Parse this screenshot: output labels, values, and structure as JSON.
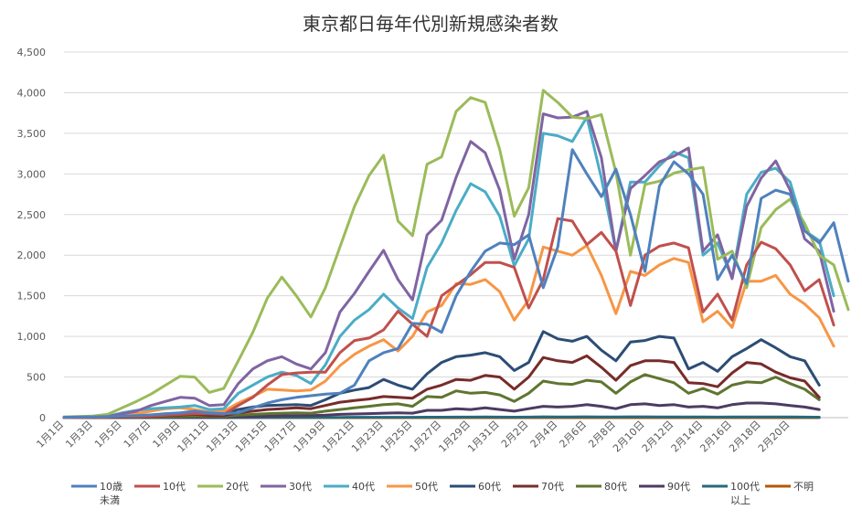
{
  "chart_data": {
    "type": "line",
    "title": "東京都日毎年代別新規感染者数",
    "xlabel": "",
    "ylabel": "",
    "ylim": [
      0,
      4500
    ],
    "yticks": [
      0,
      500,
      1000,
      1500,
      2000,
      2500,
      3000,
      3500,
      4000,
      4500
    ],
    "ytick_labels": [
      "0",
      "500",
      "1,000",
      "1,500",
      "2,000",
      "2,500",
      "3,000",
      "3,500",
      "4,000",
      "4,500"
    ],
    "grid": true,
    "legend_position": "bottom",
    "x_tick_labels": [
      "1月1日",
      "1月3日",
      "1月5日",
      "1月7日",
      "1月9日",
      "1月11日",
      "1月13日",
      "1月15日",
      "1月17日",
      "1月19日",
      "1月21日",
      "1月23日",
      "1月25日",
      "1月27日",
      "1月29日",
      "1月31日",
      "2月2日",
      "2月4日",
      "2月6日",
      "2月8日",
      "2月10日",
      "2月12日",
      "2月14日",
      "2月16日",
      "2月18日",
      "2月20日"
    ],
    "series": [
      {
        "name": "10歳\n未満",
        "color": "#4f81bd",
        "values": [
          5,
          8,
          10,
          15,
          20,
          25,
          35,
          50,
          60,
          80,
          60,
          50,
          60,
          120,
          180,
          220,
          250,
          270,
          290,
          300,
          400,
          700,
          800,
          850,
          1160,
          1150,
          1050,
          1500,
          1800,
          2050,
          2150,
          2130,
          2250,
          1600,
          2100,
          3300,
          3000,
          2720,
          3060,
          2500,
          1800,
          2850,
          3150,
          3000,
          2750,
          1700,
          2000,
          1650,
          2700,
          2800,
          2750,
          2300,
          2150,
          2400,
          1680
        ]
      },
      {
        "name": "10代",
        "color": "#c0504d",
        "values": [
          3,
          5,
          6,
          8,
          12,
          15,
          20,
          30,
          40,
          50,
          50,
          40,
          150,
          250,
          400,
          530,
          550,
          560,
          560,
          800,
          950,
          980,
          1080,
          1310,
          1150,
          1000,
          1500,
          1630,
          1760,
          1910,
          1910,
          1850,
          1350,
          1700,
          2450,
          2420,
          2130,
          2280,
          2050,
          1380,
          2000,
          2110,
          2150,
          2090,
          1300,
          1520,
          1200,
          1880,
          2160,
          2080,
          1880,
          1560,
          1700,
          1140
        ]
      },
      {
        "name": "20代",
        "color": "#9bbb59",
        "values": [
          10,
          15,
          20,
          40,
          120,
          200,
          290,
          400,
          510,
          500,
          310,
          360,
          700,
          1050,
          1470,
          1730,
          1500,
          1240,
          1600,
          2100,
          2600,
          2980,
          3230,
          2420,
          2240,
          3120,
          3210,
          3770,
          3940,
          3880,
          3300,
          2480,
          2830,
          4030,
          3880,
          3700,
          3680,
          3730,
          3020,
          2000,
          2870,
          2910,
          3010,
          3050,
          3080,
          1950,
          2050,
          1600,
          2340,
          2560,
          2690,
          2390,
          2000,
          1880,
          1330
        ]
      },
      {
        "name": "30代",
        "color": "#8064a2",
        "values": [
          5,
          8,
          10,
          15,
          50,
          80,
          150,
          200,
          250,
          240,
          150,
          160,
          420,
          600,
          700,
          750,
          660,
          600,
          800,
          1300,
          1530,
          1800,
          2060,
          1700,
          1450,
          2250,
          2430,
          2960,
          3400,
          3260,
          2800,
          1950,
          2500,
          3740,
          3690,
          3700,
          3770,
          3200,
          2050,
          2820,
          2980,
          3150,
          3220,
          3320,
          2050,
          2250,
          1710,
          2600,
          2950,
          3160,
          2800,
          2200,
          2050,
          1310
        ]
      },
      {
        "name": "40代",
        "color": "#4bacc6",
        "values": [
          5,
          8,
          10,
          15,
          60,
          90,
          110,
          120,
          130,
          150,
          100,
          110,
          300,
          400,
          500,
          560,
          520,
          420,
          650,
          1000,
          1200,
          1330,
          1520,
          1350,
          1220,
          1850,
          2150,
          2550,
          2880,
          2780,
          2480,
          1870,
          2200,
          3500,
          3470,
          3400,
          3700,
          2950,
          2050,
          2900,
          2900,
          3100,
          3270,
          3200,
          2000,
          2150,
          1720,
          2750,
          3020,
          3070,
          2900,
          2300,
          2180,
          1500
        ]
      },
      {
        "name": "50代",
        "color": "#f79646",
        "values": [
          3,
          5,
          6,
          8,
          20,
          50,
          80,
          110,
          120,
          100,
          70,
          80,
          180,
          260,
          350,
          340,
          330,
          340,
          450,
          640,
          780,
          880,
          960,
          820,
          1000,
          1300,
          1380,
          1650,
          1640,
          1700,
          1550,
          1200,
          1450,
          2100,
          2050,
          2000,
          2120,
          1750,
          1280,
          1800,
          1750,
          1880,
          1960,
          1910,
          1180,
          1310,
          1110,
          1680,
          1680,
          1750,
          1520,
          1400,
          1230,
          880
        ]
      },
      {
        "name": "60代",
        "color": "#2c4d75",
        "values": [
          2,
          3,
          4,
          5,
          8,
          15,
          25,
          40,
          50,
          60,
          40,
          40,
          100,
          130,
          150,
          155,
          160,
          150,
          220,
          300,
          340,
          370,
          470,
          400,
          350,
          540,
          680,
          750,
          770,
          800,
          750,
          580,
          680,
          1060,
          970,
          940,
          1000,
          830,
          700,
          930,
          950,
          1000,
          980,
          600,
          680,
          570,
          750,
          850,
          960,
          860,
          750,
          700,
          400
        ]
      },
      {
        "name": "70代",
        "color": "#772c2a",
        "values": [
          1,
          2,
          2,
          3,
          5,
          10,
          15,
          25,
          30,
          40,
          25,
          25,
          60,
          80,
          100,
          110,
          120,
          110,
          150,
          190,
          210,
          230,
          260,
          250,
          240,
          350,
          400,
          470,
          460,
          520,
          500,
          350,
          500,
          740,
          700,
          680,
          760,
          620,
          460,
          640,
          700,
          700,
          680,
          430,
          420,
          380,
          550,
          680,
          660,
          560,
          490,
          450,
          250
        ]
      },
      {
        "name": "80代",
        "color": "#5f7530",
        "values": [
          1,
          1,
          2,
          2,
          3,
          5,
          8,
          12,
          15,
          20,
          15,
          15,
          30,
          40,
          50,
          55,
          60,
          55,
          80,
          100,
          120,
          140,
          160,
          170,
          140,
          260,
          250,
          330,
          300,
          310,
          280,
          200,
          300,
          450,
          420,
          410,
          460,
          440,
          300,
          440,
          530,
          480,
          430,
          300,
          360,
          290,
          400,
          440,
          430,
          500,
          420,
          350,
          220
        ]
      },
      {
        "name": "90代",
        "color": "#4d3b62",
        "values": [
          0,
          0,
          1,
          1,
          1,
          2,
          3,
          5,
          6,
          8,
          6,
          6,
          10,
          15,
          20,
          22,
          25,
          25,
          30,
          40,
          45,
          50,
          55,
          60,
          55,
          90,
          90,
          110,
          100,
          120,
          100,
          80,
          110,
          140,
          130,
          140,
          160,
          140,
          110,
          160,
          170,
          150,
          160,
          130,
          140,
          120,
          160,
          180,
          180,
          170,
          150,
          130,
          100
        ]
      },
      {
        "name": "100代\n以上",
        "color": "#276a7c",
        "values": [
          0,
          0,
          0,
          0,
          0,
          0,
          0,
          0,
          1,
          1,
          0,
          0,
          1,
          1,
          2,
          2,
          2,
          2,
          3,
          3,
          4,
          4,
          5,
          5,
          4,
          6,
          6,
          7,
          7,
          8,
          7,
          6,
          7,
          10,
          9,
          9,
          10,
          9,
          8,
          10,
          10,
          9,
          9,
          8,
          8,
          7,
          8,
          9,
          9,
          9,
          8,
          7,
          6
        ]
      },
      {
        "name": "不明",
        "color": "#b65708",
        "values": [
          0,
          0,
          0,
          0,
          0,
          0,
          0,
          0,
          0,
          0,
          0,
          0,
          0,
          0,
          0,
          0,
          0,
          0,
          0,
          0,
          0,
          0,
          0,
          0,
          0,
          0,
          0,
          0,
          0,
          0,
          0,
          0,
          0,
          0,
          0,
          0,
          0,
          0,
          0,
          0,
          0,
          0,
          0,
          0,
          0,
          0,
          0,
          0,
          0,
          0,
          0,
          0,
          0
        ]
      }
    ]
  }
}
